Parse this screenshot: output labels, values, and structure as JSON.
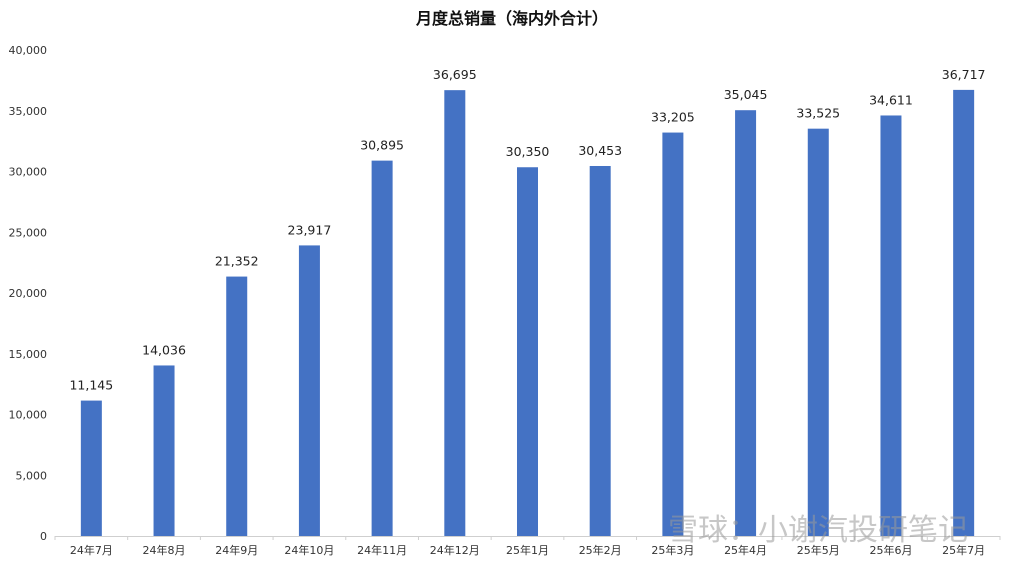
{
  "chart_data": {
    "type": "bar",
    "title": "月度总销量（海内外合计）",
    "xlabel": "",
    "ylabel": "",
    "categories": [
      "24年7月",
      "24年8月",
      "24年9月",
      "24年10月",
      "24年11月",
      "24年12月",
      "25年1月",
      "25年2月",
      "25年3月",
      "25年4月",
      "25年5月",
      "25年6月",
      "25年7月"
    ],
    "values": [
      11145,
      14036,
      21352,
      23917,
      30895,
      36695,
      30350,
      30453,
      33205,
      35045,
      33525,
      34611,
      36717
    ],
    "data_labels": [
      "11,145",
      "14,036",
      "21,352",
      "23,917",
      "30,895",
      "36,695",
      "30,350",
      "30,453",
      "33,205",
      "35,045",
      "33,525",
      "34,611",
      "36,717"
    ],
    "ylim": [
      0,
      40000
    ],
    "yticks": [
      0,
      5000,
      10000,
      15000,
      20000,
      25000,
      30000,
      35000,
      40000
    ],
    "ytick_labels": [
      "0",
      "5,000",
      "10,000",
      "15,000",
      "20,000",
      "25,000",
      "30,000",
      "35,000",
      "40,000"
    ],
    "grid": false,
    "legend": "none",
    "bar_color": "#4472C4"
  },
  "watermark": "雪球：小谢汽投研笔记"
}
